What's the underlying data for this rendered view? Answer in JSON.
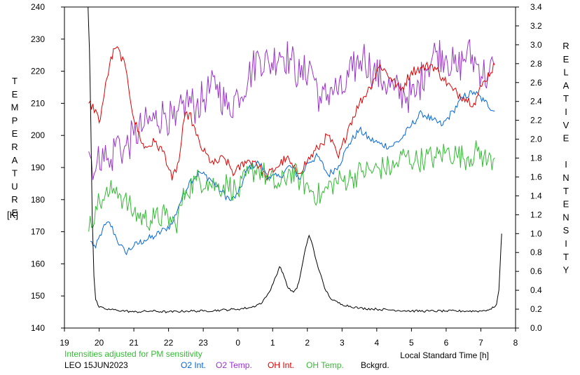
{
  "chart_data": {
    "type": "line",
    "left_axis": {
      "label": "TEMPERATURE",
      "unit": "[K]",
      "range": [
        140,
        240
      ],
      "ticks": [
        "140",
        "150",
        "160",
        "170",
        "180",
        "190",
        "200",
        "210",
        "220",
        "230",
        "240"
      ]
    },
    "right_axis": {
      "label": "RELATIVE INTENSITY",
      "range": [
        0.0,
        3.4
      ],
      "ticks": [
        "0.0",
        "0.2",
        "0.4",
        "0.6",
        "0.8",
        "1.0",
        "1.2",
        "1.4",
        "1.6",
        "1.8",
        "2.0",
        "2.2",
        "2.4",
        "2.6",
        "2.8",
        "3.0",
        "3.2",
        "3.4"
      ]
    },
    "x_axis": {
      "label": "Local Standard Time [h]",
      "range": [
        19,
        32
      ],
      "ticks": [
        "19",
        "20",
        "21",
        "22",
        "23",
        "0",
        "1",
        "2",
        "3",
        "4",
        "5",
        "6",
        "7",
        "8"
      ]
    },
    "note": "Intensities adjusted for PM sensitivity",
    "station": "LEO 15JUN2023",
    "grid": false,
    "legend_position": "bottom",
    "series": [
      {
        "name": "O2 Int.",
        "color": "#0066dd",
        "axis": "right",
        "x": [
          19.75,
          19.9,
          20.1,
          20.3,
          20.5,
          20.6,
          20.75,
          21.0,
          21.3,
          21.6,
          21.9,
          22.1,
          22.3,
          22.6,
          22.9,
          23.2,
          23.5,
          23.8,
          24.0,
          24.3,
          24.6,
          24.9,
          25.2,
          25.5,
          25.8,
          26.0,
          26.3,
          26.6,
          26.9,
          27.2,
          27.5,
          27.8,
          28.1,
          28.4,
          28.7,
          29.0,
          29.3,
          29.6,
          29.9,
          30.2,
          30.5,
          30.8,
          31.1,
          31.4
        ],
        "values": [
          0.92,
          0.85,
          1.05,
          1.12,
          0.95,
          0.88,
          0.8,
          0.87,
          0.93,
          0.97,
          1.05,
          1.1,
          1.3,
          1.55,
          1.65,
          1.58,
          1.45,
          1.35,
          1.42,
          1.7,
          1.75,
          1.6,
          1.6,
          1.72,
          1.58,
          1.75,
          1.82,
          1.62,
          1.72,
          1.95,
          2.1,
          2.0,
          1.95,
          1.92,
          2.0,
          2.15,
          2.28,
          2.2,
          2.15,
          2.3,
          2.45,
          2.5,
          2.4,
          2.3
        ]
      },
      {
        "name": "O2 Temp.",
        "color": "#9933cc",
        "axis": "left",
        "x": [
          19.7,
          19.9,
          20.1,
          20.3,
          20.5,
          20.7,
          21.0,
          21.3,
          21.6,
          21.9,
          22.2,
          22.5,
          22.8,
          23.1,
          23.4,
          23.7,
          24.0,
          24.3,
          24.6,
          24.9,
          25.2,
          25.5,
          25.8,
          26.1,
          26.4,
          26.7,
          27.0,
          27.3,
          27.6,
          27.9,
          28.2,
          28.5,
          28.8,
          29.1,
          29.4,
          29.7,
          30.0,
          30.3,
          30.6,
          30.9,
          31.2,
          31.4
        ],
        "values": [
          195,
          189,
          196,
          190,
          199,
          195,
          200,
          203,
          205,
          207,
          203,
          211,
          209,
          213,
          216,
          208,
          213,
          218,
          225,
          222,
          226,
          224,
          218,
          222,
          210,
          215,
          213,
          220,
          225,
          220,
          217,
          214,
          213,
          212,
          221,
          226,
          225,
          220,
          226,
          222,
          218,
          222
        ]
      },
      {
        "name": "OH Int.",
        "color": "#dd0000",
        "axis": "left",
        "x": [
          19.7,
          19.9,
          20.0,
          20.15,
          20.3,
          20.45,
          20.6,
          20.8,
          21.0,
          21.3,
          21.6,
          21.9,
          22.1,
          22.3,
          22.45,
          22.6,
          22.8,
          23.0,
          23.3,
          23.6,
          23.9,
          24.2,
          24.5,
          24.8,
          25.1,
          25.4,
          25.7,
          26.0,
          26.3,
          26.6,
          26.9,
          27.2,
          27.5,
          27.8,
          28.1,
          28.4,
          28.7,
          29.0,
          29.3,
          29.6,
          29.9,
          30.2,
          30.5,
          30.8,
          31.1,
          31.4
        ],
        "values": [
          210,
          208,
          204,
          213,
          222,
          227,
          226,
          219,
          205,
          196,
          198,
          194,
          186,
          192,
          205,
          207,
          200,
          195,
          191,
          193,
          188,
          192,
          192,
          187,
          190,
          193,
          188,
          192,
          196,
          200,
          193,
          203,
          210,
          215,
          222,
          218,
          214,
          220,
          221,
          222,
          218,
          214,
          212,
          210,
          217,
          222
        ]
      },
      {
        "name": "OH Temp.",
        "color": "#33bb33",
        "axis": "left",
        "x": [
          19.7,
          19.9,
          20.1,
          20.3,
          20.5,
          20.7,
          21.0,
          21.3,
          21.6,
          21.9,
          22.2,
          22.5,
          22.8,
          23.1,
          23.4,
          23.7,
          24.0,
          24.3,
          24.6,
          24.9,
          25.2,
          25.5,
          25.8,
          26.1,
          26.4,
          26.7,
          27.0,
          27.3,
          27.6,
          27.9,
          28.2,
          28.5,
          28.8,
          29.1,
          29.4,
          29.7,
          30.0,
          30.3,
          30.6,
          30.9,
          31.2,
          31.4
        ],
        "values": [
          170,
          178,
          180,
          182,
          184,
          180,
          176,
          174,
          174,
          175,
          172,
          183,
          186,
          186,
          184,
          185,
          182,
          188,
          190,
          186,
          184,
          189,
          186,
          183,
          181,
          185,
          186,
          187,
          189,
          189,
          190,
          190,
          194,
          192,
          193,
          193,
          195,
          194,
          193,
          195,
          192,
          193
        ]
      },
      {
        "name": "Bckgrd.",
        "color": "#000000",
        "axis": "right",
        "x": [
          19.68,
          19.72,
          19.76,
          19.8,
          19.85,
          19.9,
          20.0,
          20.2,
          20.5,
          21.0,
          21.5,
          22.0,
          22.5,
          23.0,
          23.5,
          24.0,
          24.4,
          24.7,
          24.9,
          25.1,
          25.2,
          25.3,
          25.45,
          25.6,
          25.7,
          25.75,
          25.85,
          25.95,
          26.05,
          26.15,
          26.25,
          26.35,
          26.5,
          26.7,
          27.0,
          27.5,
          28.0,
          28.5,
          29.0,
          29.5,
          30.0,
          30.5,
          31.0,
          31.3,
          31.45,
          31.52,
          31.56,
          31.6
        ],
        "values": [
          3.4,
          2.95,
          2.2,
          1.2,
          0.55,
          0.3,
          0.22,
          0.2,
          0.19,
          0.17,
          0.18,
          0.17,
          0.18,
          0.18,
          0.19,
          0.2,
          0.22,
          0.27,
          0.38,
          0.55,
          0.65,
          0.58,
          0.42,
          0.38,
          0.42,
          0.48,
          0.66,
          0.85,
          0.98,
          0.88,
          0.72,
          0.6,
          0.42,
          0.3,
          0.25,
          0.21,
          0.2,
          0.19,
          0.18,
          0.18,
          0.18,
          0.18,
          0.18,
          0.2,
          0.25,
          0.4,
          0.7,
          1.0
        ]
      }
    ]
  }
}
